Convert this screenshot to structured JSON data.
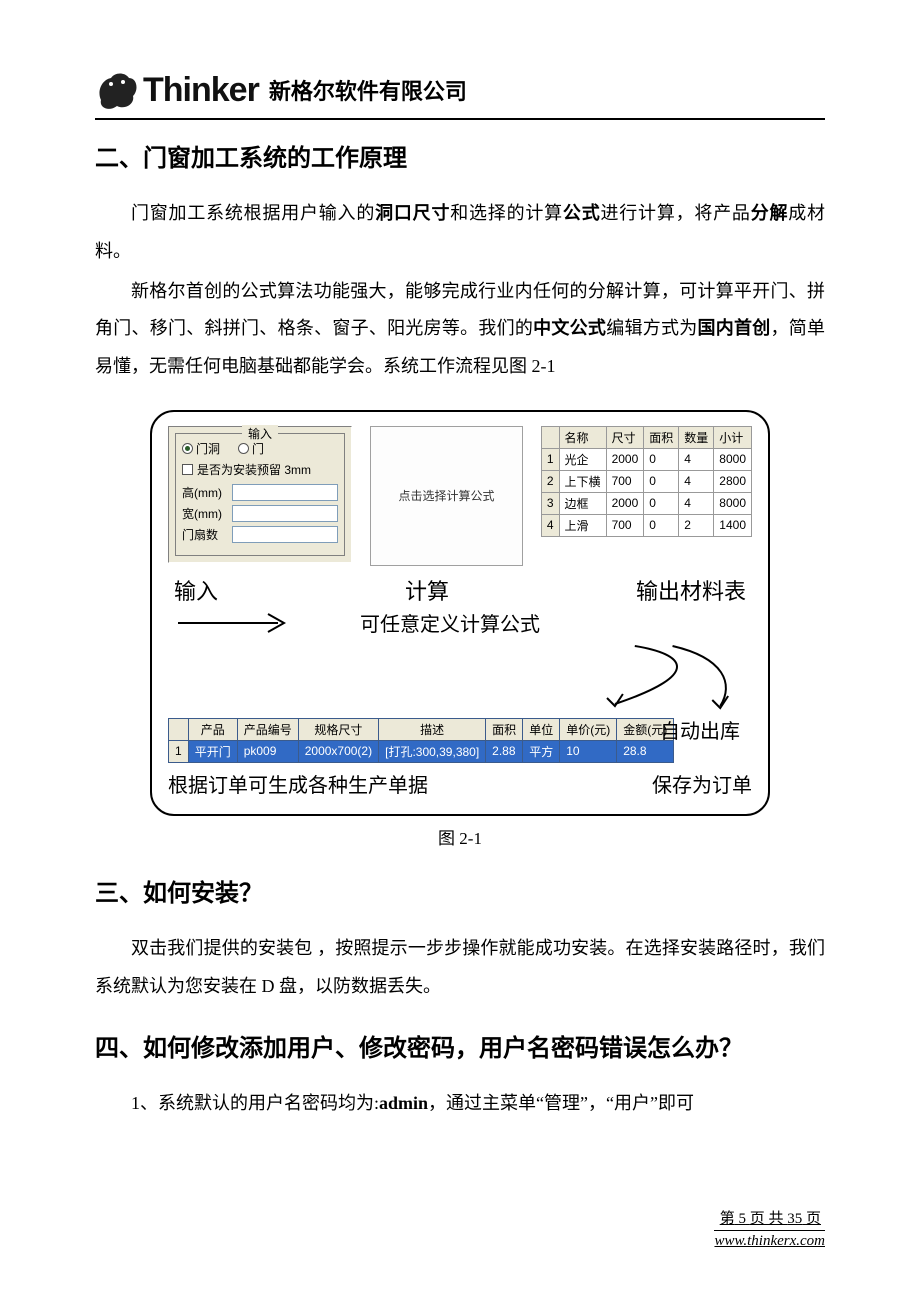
{
  "header": {
    "logo_text": "Thinker",
    "company": "新格尔软件有限公司"
  },
  "section2": {
    "title": "二、门窗加工系统的工作原理",
    "p1_a": "门窗加工系统根据用户输入的",
    "p1_b1": "洞口尺寸",
    "p1_c": "和选择的计算",
    "p1_b2": "公式",
    "p1_d": "进行计算，将产品",
    "p1_b3": "分解",
    "p1_e": "成材料。",
    "p2_a": "新格尔首创的公式算法功能强大，能够完成行业内任何的分解计算，可计算平开门、拼角门、移门、斜拼门、格条、窗子、阳光房等。我们的",
    "p2_b1": "中文公式",
    "p2_b": "编辑方式为",
    "p2_b2": "国内首创",
    "p2_c": "，简单易懂，无需任何电脑基础都能学会。系统工作流程见图 2-1"
  },
  "figure": {
    "input_panel": {
      "legend": "输入",
      "radio1": "门洞",
      "radio2": "门",
      "radio_selected": 1,
      "checkbox_label": "是否为安装预留 3mm",
      "field_height": "高(mm)",
      "field_width": "宽(mm)",
      "field_count": "门扇数"
    },
    "formula_placeholder": "点击选择计算公式",
    "material_table": {
      "columns": [
        "",
        "名称",
        "尺寸",
        "面积",
        "数量",
        "小计"
      ],
      "rows": [
        [
          "1",
          "光企",
          "2000",
          "0",
          "4",
          "8000"
        ],
        [
          "2",
          "上下横",
          "700",
          "0",
          "4",
          "2800"
        ],
        [
          "3",
          "边框",
          "2000",
          "0",
          "4",
          "8000"
        ],
        [
          "4",
          "上滑",
          "700",
          "0",
          "2",
          "1400"
        ]
      ]
    },
    "flow": {
      "label_input": "输入",
      "label_calc": "计算",
      "label_output": "输出材料表",
      "label_formula": "可任意定义计算公式",
      "label_auto_out": "自动出库",
      "label_gen_docs": "根据订单可生成各种生产单据",
      "label_save_order": "保存为订单"
    },
    "order_table": {
      "columns": [
        "",
        "产品",
        "产品编号",
        "规格尺寸",
        "描述",
        "面积",
        "单位",
        "单价(元)",
        "金额(元)"
      ],
      "rows": [
        [
          "1",
          "平开门",
          "pk009",
          "2000x700(2)",
          "[打孔:300,39,380]",
          "2.88",
          "平方",
          "10",
          "28.8"
        ]
      ]
    },
    "caption": "图 2-1"
  },
  "section3": {
    "title": "三、如何安装？",
    "p1": "双击我们提供的安装包 ，按照提示一步步操作就能成功安装。在选择安装路径时，我们系统默认为您安装在 D 盘，以防数据丢失。"
  },
  "section4": {
    "title": "四、如何修改添加用户、修改密码，用户名密码错误怎么办？",
    "p1_a": "1、系统默认的用户名密码均为:",
    "p1_b": "admin",
    "p1_c": "，通过主菜单“管理”，“用户”即可"
  },
  "footer": {
    "page_label_a": "第",
    "page_num": "5",
    "page_label_b": "页 共",
    "page_total": "35",
    "page_label_c": "页",
    "url": "www.thinkerx.com"
  },
  "style": {
    "accent_blue": "#316ac5",
    "panel_bg": "#ece9d8"
  }
}
